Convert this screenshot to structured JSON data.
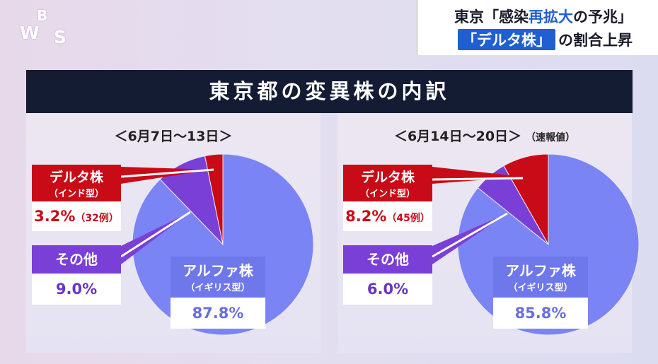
{
  "logo": {
    "letters": [
      "W",
      "B",
      "S"
    ]
  },
  "headline": {
    "line1_pre": "東京「感染",
    "line1_accent": "再拡大",
    "line1_post": "の予兆」",
    "line2_box": "「デルタ株」",
    "line2_post": "の割合上昇"
  },
  "title": "東京都の変異株の内訳",
  "colors": {
    "delta": "#c80b17",
    "other": "#7a3fd6",
    "alpha": "#7b84f5",
    "title_bg": "#141c34",
    "accent": "#1f5fd1"
  },
  "chart_data": [
    {
      "type": "pie",
      "title": "＜6月7日〜13日＞",
      "note": "",
      "slices": [
        {
          "name": "デルタ株",
          "sub": "（インド型）",
          "value": 3.2,
          "label": "3.2%",
          "cases": "（32例）"
        },
        {
          "name": "その他",
          "sub": "",
          "value": 9.0,
          "label": "9.0%",
          "cases": ""
        },
        {
          "name": "アルファ株",
          "sub": "（イギリス型）",
          "value": 87.8,
          "label": "87.8%",
          "cases": ""
        }
      ]
    },
    {
      "type": "pie",
      "title": "＜6月14日〜20日＞",
      "note": "（速報値）",
      "slices": [
        {
          "name": "デルタ株",
          "sub": "（インド型）",
          "value": 8.2,
          "label": "8.2%",
          "cases": "（45例）"
        },
        {
          "name": "その他",
          "sub": "",
          "value": 6.0,
          "label": "6.0%",
          "cases": ""
        },
        {
          "name": "アルファ株",
          "sub": "（イギリス型）",
          "value": 85.8,
          "label": "85.8%",
          "cases": ""
        }
      ]
    }
  ]
}
